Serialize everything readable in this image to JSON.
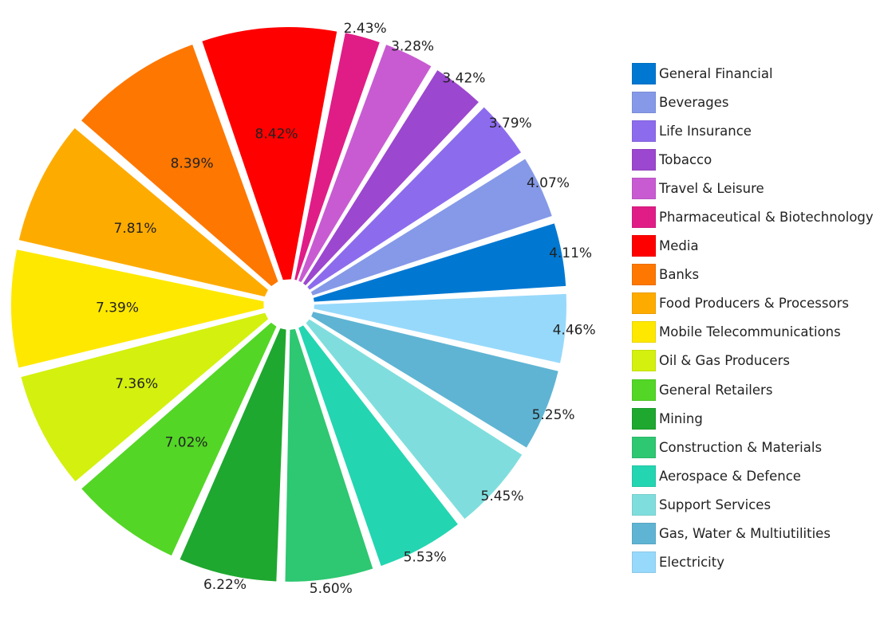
{
  "chart_data": {
    "type": "pie",
    "title": "",
    "legend_position": "right",
    "slices": [
      {
        "name": "General Financial",
        "value": 4.11,
        "label": "4.11%",
        "color": "#0078d2"
      },
      {
        "name": "Beverages",
        "value": 4.07,
        "label": "4.07%",
        "color": "#8599e8"
      },
      {
        "name": "Life Insurance",
        "value": 3.79,
        "label": "3.79%",
        "color": "#8c6ced"
      },
      {
        "name": "Tobacco",
        "value": 3.42,
        "label": "3.42%",
        "color": "#9c47cf"
      },
      {
        "name": "Travel & Leisure",
        "value": 3.28,
        "label": "3.28%",
        "color": "#c85bd2"
      },
      {
        "name": "Pharmaceutical & Biotechnology",
        "value": 2.43,
        "label": "2.43%",
        "color": "#e01d86"
      },
      {
        "name": "Media",
        "value": 8.42,
        "label": "8.42%",
        "color": "#fe0000"
      },
      {
        "name": "Banks",
        "value": 8.39,
        "label": "8.39%",
        "color": "#fe7700"
      },
      {
        "name": "Food Producers & Processors",
        "value": 7.81,
        "label": "7.81%",
        "color": "#feab00"
      },
      {
        "name": "Mobile Telecommunications",
        "value": 7.39,
        "label": "7.39%",
        "color": "#fee800"
      },
      {
        "name": "Oil & Gas Producers",
        "value": 7.36,
        "label": "7.36%",
        "color": "#d4f00e"
      },
      {
        "name": "General Retailers",
        "value": 7.02,
        "label": "7.02%",
        "color": "#53d626"
      },
      {
        "name": "Mining",
        "value": 6.22,
        "label": "6.22%",
        "color": "#1ea82f"
      },
      {
        "name": "Construction & Materials",
        "value": 5.6,
        "label": "5.60%",
        "color": "#2ec772"
      },
      {
        "name": "Aerospace & Defence",
        "value": 5.53,
        "label": "5.53%",
        "color": "#24d5b1"
      },
      {
        "name": "Support Services",
        "value": 5.45,
        "label": "5.45%",
        "color": "#7fdedd"
      },
      {
        "name": "Gas, Water & Multiutilities",
        "value": 5.25,
        "label": "5.25%",
        "color": "#5fb4d3"
      },
      {
        "name": "Electricity",
        "value": 4.46,
        "label": "4.46%",
        "color": "#97d9fb"
      }
    ]
  }
}
